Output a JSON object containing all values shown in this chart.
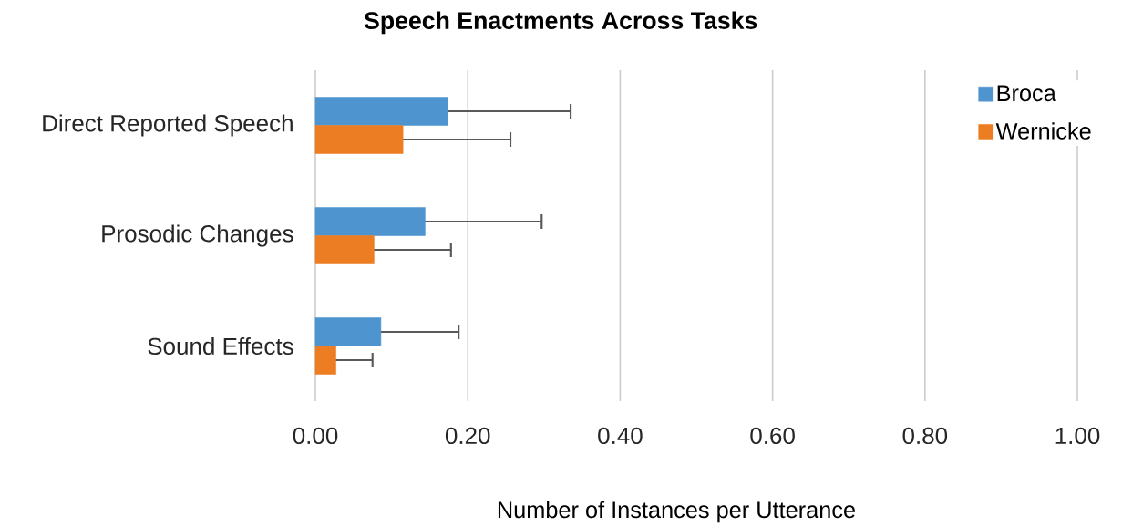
{
  "chart_data": {
    "type": "bar",
    "orientation": "horizontal",
    "title": "Speech Enactments Across Tasks",
    "xlabel": "Number of Instances per Utterance",
    "categories": [
      "Direct Reported Speech",
      "Prosodic Changes",
      "Sound Effects"
    ],
    "series": [
      {
        "name": "Broca",
        "color": "#4e95d0",
        "values": [
          0.174,
          0.144,
          0.086
        ],
        "errors": [
          [
            0.174,
            0.335
          ],
          [
            0.144,
            0.297
          ],
          [
            0.086,
            0.188
          ]
        ]
      },
      {
        "name": "Wernicke",
        "color": "#ed7d22",
        "values": [
          0.115,
          0.077,
          0.027
        ],
        "errors": [
          [
            0.115,
            0.256
          ],
          [
            0.077,
            0.178
          ],
          [
            0.027,
            0.075
          ]
        ]
      }
    ],
    "xlim": [
      0,
      1
    ],
    "xticks": [
      {
        "value": 0,
        "label": "0.00"
      },
      {
        "value": 0.2,
        "label": "0.20"
      },
      {
        "value": 0.4,
        "label": "0.40"
      },
      {
        "value": 0.6,
        "label": "0.60"
      },
      {
        "value": 0.8,
        "label": "0.80"
      },
      {
        "value": 1,
        "label": "1.00"
      }
    ],
    "grid": "x",
    "legend": "right"
  }
}
